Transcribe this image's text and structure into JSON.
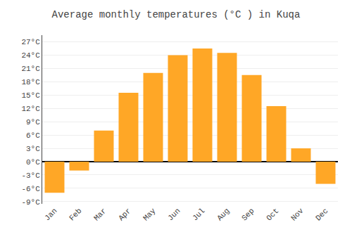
{
  "chart_data": {
    "type": "bar",
    "title": "Average monthly temperatures (°C ) in Kuqa",
    "categories": [
      "Jan",
      "Feb",
      "Mar",
      "Apr",
      "May",
      "Jun",
      "Jul",
      "Aug",
      "Sep",
      "Oct",
      "Nov",
      "Dec"
    ],
    "values": [
      -7.0,
      -2.0,
      7.0,
      15.5,
      20.0,
      24.0,
      25.5,
      24.5,
      19.5,
      12.5,
      3.0,
      -5.0
    ],
    "color": "#FFA726",
    "ylim": [
      -9.5,
      28.5
    ],
    "yticks": [
      {
        "value": -9,
        "label": "-9°C"
      },
      {
        "value": -6,
        "label": "-6°C"
      },
      {
        "value": -3,
        "label": "-3°C"
      },
      {
        "value": 0,
        "label": "0°C"
      },
      {
        "value": 3,
        "label": "3°C"
      },
      {
        "value": 6,
        "label": "6°C"
      },
      {
        "value": 9,
        "label": "9°C"
      },
      {
        "value": 12,
        "label": "12°C"
      },
      {
        "value": 15,
        "label": "15°C"
      },
      {
        "value": 18,
        "label": "18°C"
      },
      {
        "value": 21,
        "label": "21°C"
      },
      {
        "value": 24,
        "label": "24°C"
      },
      {
        "value": 27,
        "label": "27°C"
      }
    ],
    "grid": true
  }
}
